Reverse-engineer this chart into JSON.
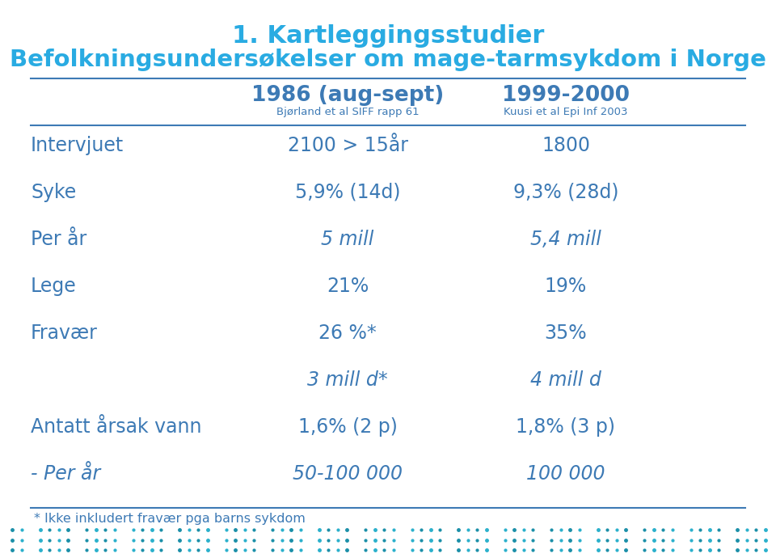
{
  "title_line1": "1. Kartleggingsstudier",
  "title_line2": "Befolkningsundersøkelser om mage-tarmsykdom i Norge",
  "title_color": "#29abe2",
  "col1_header": "1986 (aug-sept)",
  "col1_subheader": "Bjørland et al SIFF rapp 61",
  "col2_header": "1999-2000",
  "col2_subheader": "Kuusi et al Epi Inf 2003",
  "rows": [
    {
      "label": "Intervjuet",
      "col1": "2100 > 15år",
      "col2": "1800",
      "label_italic": false,
      "val_italic": false
    },
    {
      "label": "Syke",
      "col1": "5,9% (14d)",
      "col2": "9,3% (28d)",
      "label_italic": false,
      "val_italic": false
    },
    {
      "label": "Per år",
      "col1": "5 mill",
      "col2": "5,4 mill",
      "label_italic": false,
      "val_italic": true
    },
    {
      "label": "Lege",
      "col1": "21%",
      "col2": "19%",
      "label_italic": false,
      "val_italic": false
    },
    {
      "label": "Fravær",
      "col1": "26 %*",
      "col2": "35%",
      "label_italic": false,
      "val_italic": false
    },
    {
      "label": "",
      "col1": "3 mill d*",
      "col2": "4 mill d",
      "label_italic": false,
      "val_italic": true
    },
    {
      "label": "Antatt årsak vann",
      "col1": "1,6% (2 p)",
      "col2": "1,8% (3 p)",
      "label_italic": false,
      "val_italic": false
    },
    {
      "label": "- Per år",
      "col1": "50-100 000",
      "col2": "100 000",
      "label_italic": true,
      "val_italic": true
    }
  ],
  "footnote": "* Ikke inkludert fravær pga barns sykdom",
  "title_color1": "#29abe2",
  "body_color": "#3d7ab5",
  "line_color": "#3d7ab5",
  "bg_color": "#ffffff",
  "dot_colors": [
    "#1a8fa8",
    "#2ab0cc",
    "#1a8fa8",
    "#2ab0cc"
  ]
}
